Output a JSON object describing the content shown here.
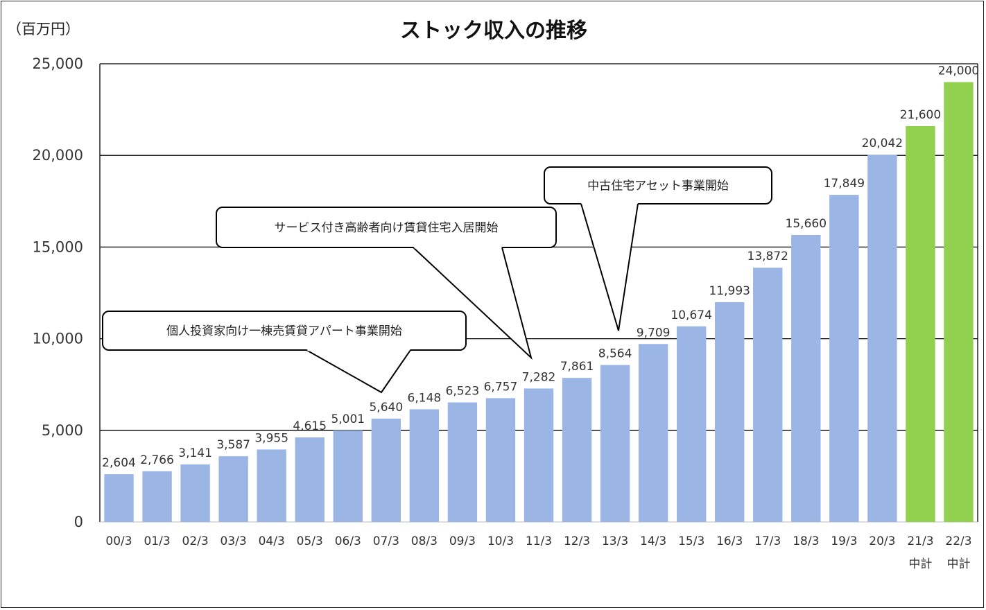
{
  "chart_data": {
    "type": "bar",
    "title": "ストック収入の推移",
    "unit_label": "（百万円）",
    "ylim": [
      0,
      25000
    ],
    "y_ticks": [
      "0",
      "5,000",
      "10,000",
      "15,000",
      "20,000",
      "25,000"
    ],
    "y_tick_values": [
      0,
      5000,
      10000,
      15000,
      20000,
      25000
    ],
    "grid": true,
    "categories": [
      "00/3",
      "01/3",
      "02/3",
      "03/3",
      "04/3",
      "05/3",
      "06/3",
      "07/3",
      "08/3",
      "09/3",
      "10/3",
      "11/3",
      "12/3",
      "13/3",
      "14/3",
      "15/3",
      "16/3",
      "17/3",
      "18/3",
      "19/3",
      "20/3",
      "21/3",
      "22/3"
    ],
    "category_sublabels": [
      "",
      "",
      "",
      "",
      "",
      "",
      "",
      "",
      "",
      "",
      "",
      "",
      "",
      "",
      "",
      "",
      "",
      "",
      "",
      "",
      "",
      "中計",
      "中計"
    ],
    "values": [
      2604,
      2766,
      3141,
      3587,
      3955,
      4615,
      5001,
      5640,
      6148,
      6523,
      6757,
      7282,
      7861,
      8564,
      9709,
      10674,
      11993,
      13872,
      15660,
      17849,
      20042,
      21600,
      24000
    ],
    "data_labels": [
      "2,604",
      "2,766",
      "3,141",
      "3,587",
      "3,955",
      "4,615",
      "5,001",
      "5,640",
      "6,148",
      "6,523",
      "6,757",
      "7,282",
      "7,861",
      "8,564",
      "9,709",
      "10,674",
      "11,993",
      "13,872",
      "15,660",
      "17,849",
      "20,042",
      "21,600",
      "24,000"
    ],
    "bar_kinds": [
      "actual",
      "actual",
      "actual",
      "actual",
      "actual",
      "actual",
      "actual",
      "actual",
      "actual",
      "actual",
      "actual",
      "actual",
      "actual",
      "actual",
      "actual",
      "actual",
      "actual",
      "actual",
      "actual",
      "actual",
      "actual",
      "plan",
      "plan"
    ],
    "colors": {
      "actual": "#9bb5e4",
      "plan": "#92d050",
      "grid": "#000000",
      "callout_border": "#000000"
    },
    "annotations": [
      {
        "text": "個人投資家向け一棟売賃貸アパート事業開始",
        "target_category": "07/3"
      },
      {
        "text": "サービス付き高齢者向け賃貸住宅入居開始",
        "target_category": "11/3"
      },
      {
        "text": "中古住宅アセット事業開始",
        "target_category": "13/3"
      }
    ]
  }
}
